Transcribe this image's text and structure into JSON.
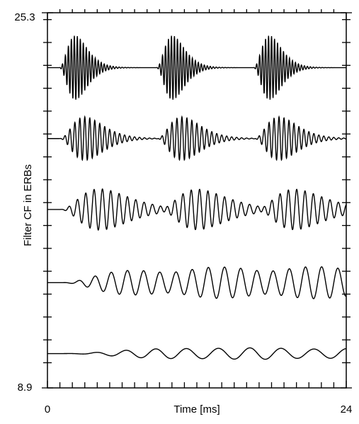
{
  "chart_data": {
    "type": "waveforms",
    "xlabel": "Time [ms]",
    "ylabel": "Filter CF in ERBs",
    "xlim": [
      0,
      24
    ],
    "xticks": [
      0,
      24
    ],
    "xminor_ticks": [
      1,
      2,
      3,
      4,
      5,
      6,
      7,
      8,
      9,
      10,
      11,
      12,
      13,
      14,
      15,
      16,
      17,
      18,
      19,
      20,
      21,
      22,
      23
    ],
    "ylim": [
      8.9,
      25.3
    ],
    "yticks": [
      8.9,
      25.3
    ],
    "yminor_ticks": [
      10,
      11,
      12,
      13,
      14,
      15,
      16,
      17,
      18,
      19,
      20,
      21,
      22,
      23,
      24,
      25
    ],
    "onsets": [
      0.9,
      8.7,
      16.5
    ],
    "color": "#000000",
    "series": [
      {
        "cf": 22.9,
        "amplitude": 1.4,
        "period": 0.24,
        "decay": 0.45
      },
      {
        "cf": 19.8,
        "amplitude": 0.95,
        "period": 0.4,
        "decay": 0.7
      },
      {
        "cf": 16.7,
        "amplitude": 0.9,
        "period": 0.67,
        "decay": 1.1
      },
      {
        "cf": 13.5,
        "amplitude": 0.7,
        "period": 1.3,
        "decay": 2.0
      },
      {
        "cf": 10.4,
        "amplitude": 0.25,
        "period": 2.4,
        "decay": 3.2
      }
    ]
  }
}
